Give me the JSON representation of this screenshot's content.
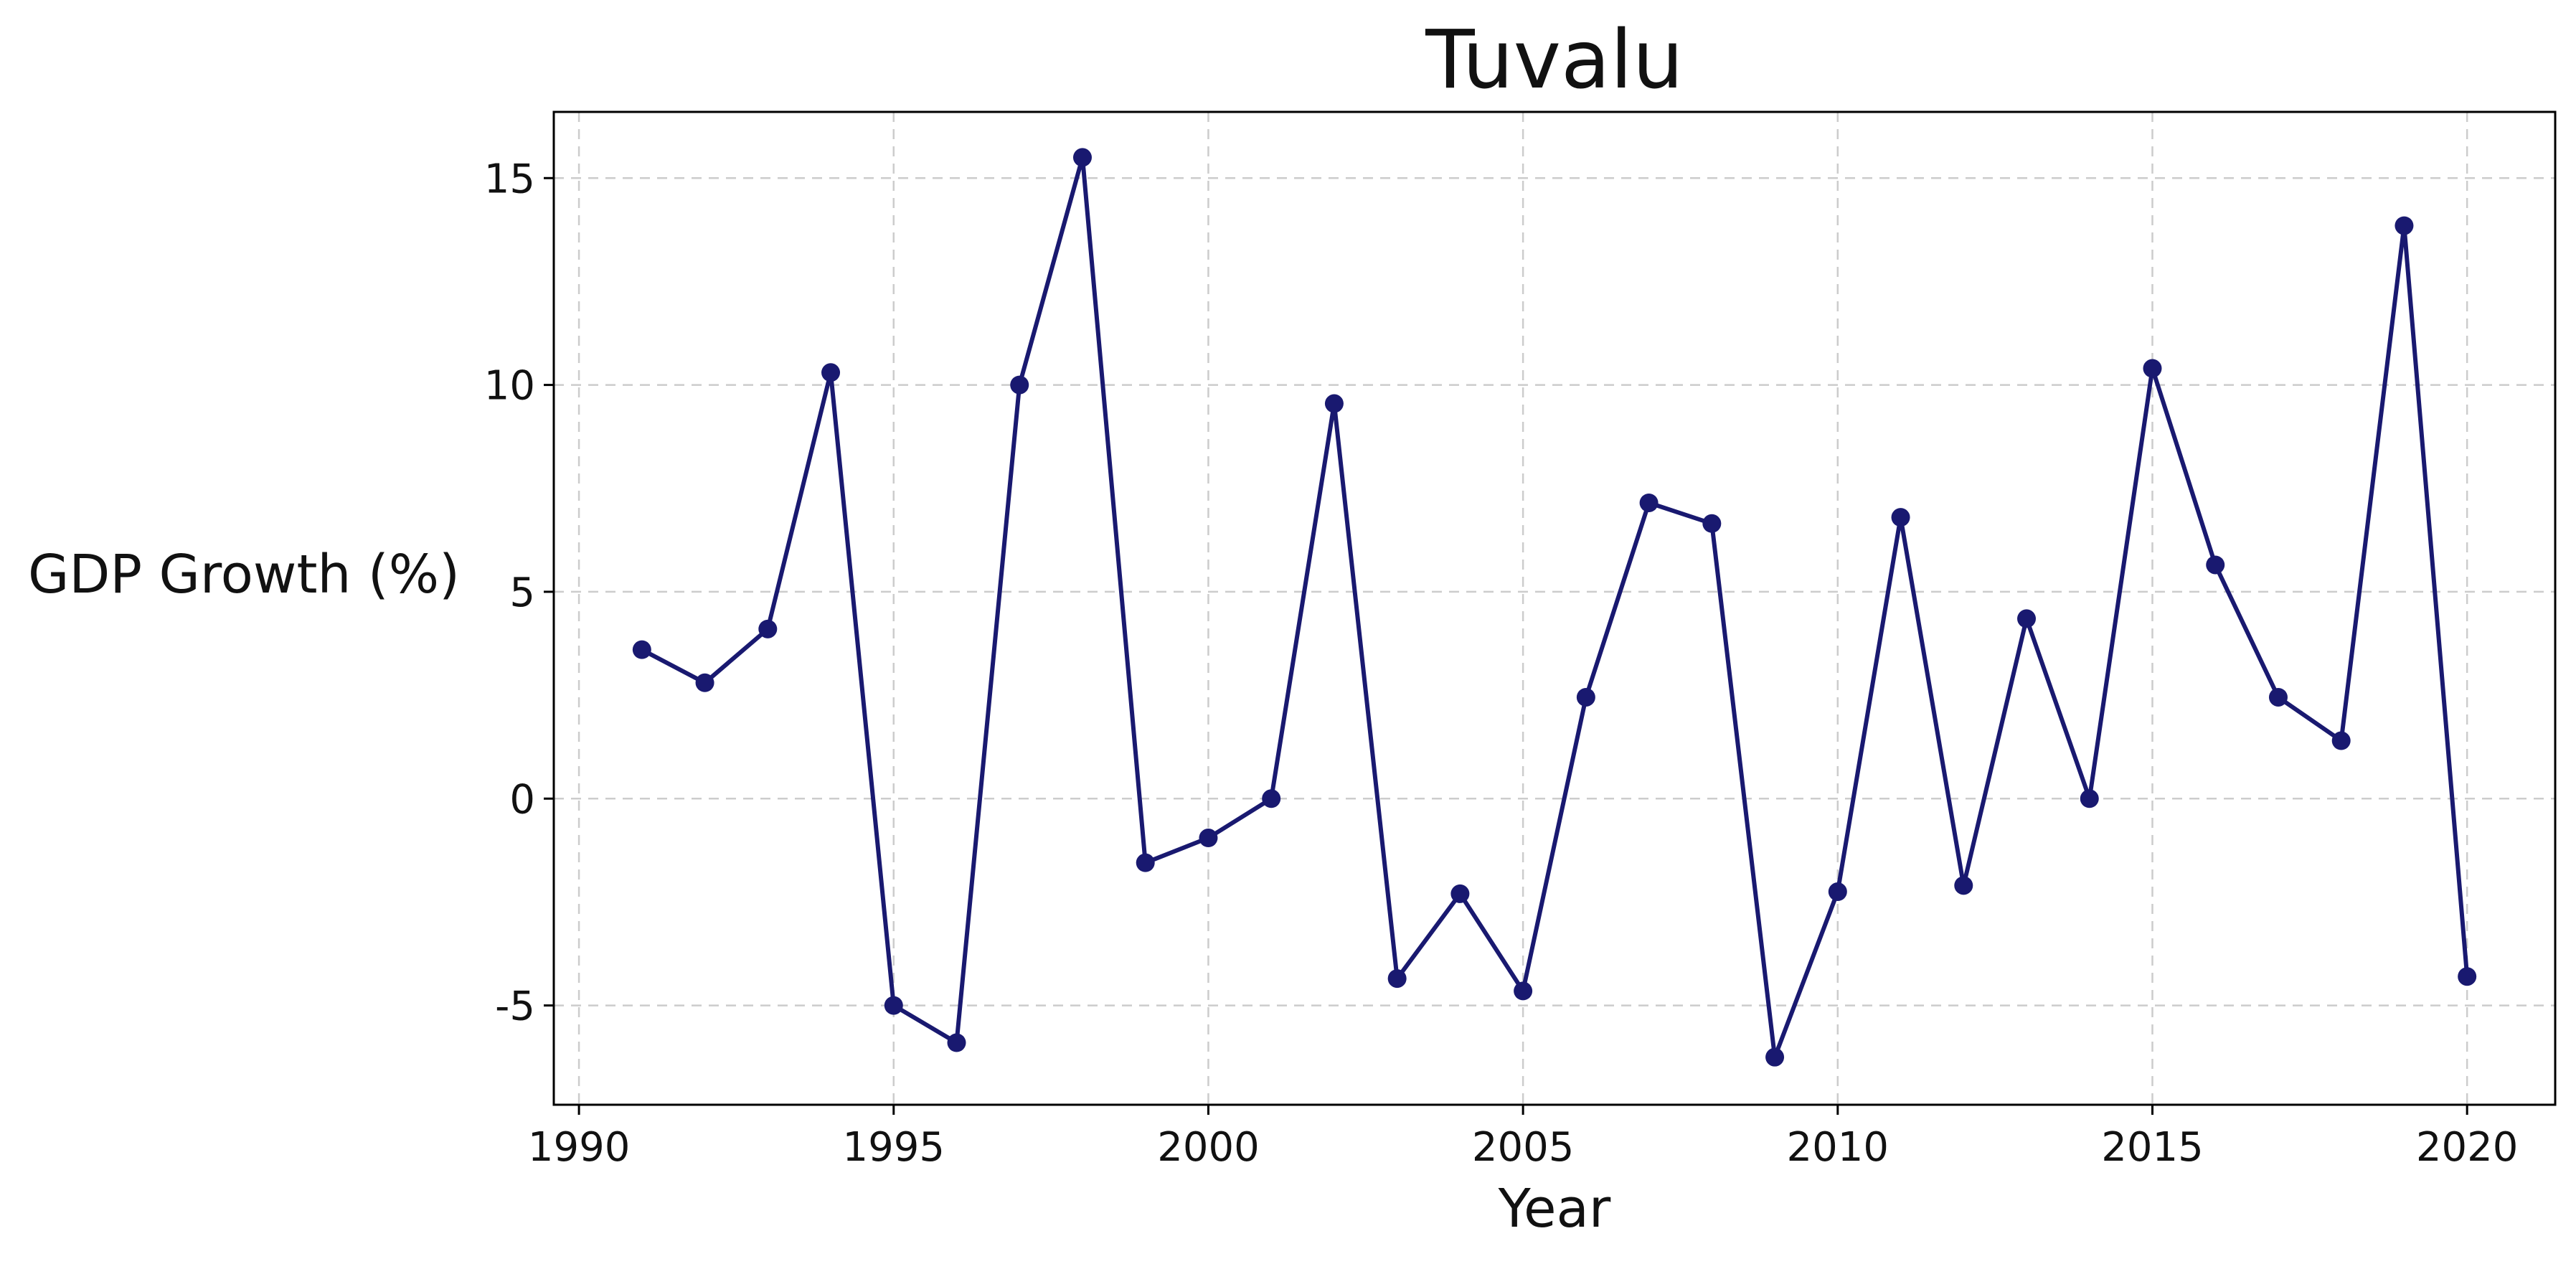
{
  "chart_data": {
    "type": "line",
    "title": "Tuvalu",
    "xlabel": "Year",
    "ylabel": "GDP Growth (%)",
    "xlim": [
      1989.6,
      2021.4
    ],
    "ylim": [
      -7.4,
      16.6
    ],
    "xticks": [
      1990,
      1995,
      2000,
      2005,
      2010,
      2015,
      2020
    ],
    "yticks": [
      -5,
      0,
      5,
      10,
      15
    ],
    "ytick_labels": [
      "-5",
      "0",
      "5",
      "10",
      "15"
    ],
    "grid": true,
    "legend": "none",
    "color": "#191970",
    "x": [
      1991,
      1992,
      1993,
      1994,
      1995,
      1996,
      1997,
      1998,
      1999,
      2000,
      2001,
      2002,
      2003,
      2004,
      2005,
      2006,
      2007,
      2008,
      2009,
      2010,
      2011,
      2012,
      2013,
      2014,
      2015,
      2016,
      2017,
      2018,
      2019,
      2020
    ],
    "y": [
      3.6,
      2.8,
      4.1,
      10.3,
      -5.0,
      -5.9,
      10.0,
      15.5,
      -1.55,
      -0.95,
      0.0,
      9.55,
      -4.35,
      -2.3,
      -4.65,
      2.45,
      7.15,
      6.65,
      -6.25,
      -2.25,
      6.8,
      -2.1,
      4.35,
      0.0,
      10.4,
      5.65,
      2.45,
      1.4,
      13.85,
      -4.3
    ]
  }
}
